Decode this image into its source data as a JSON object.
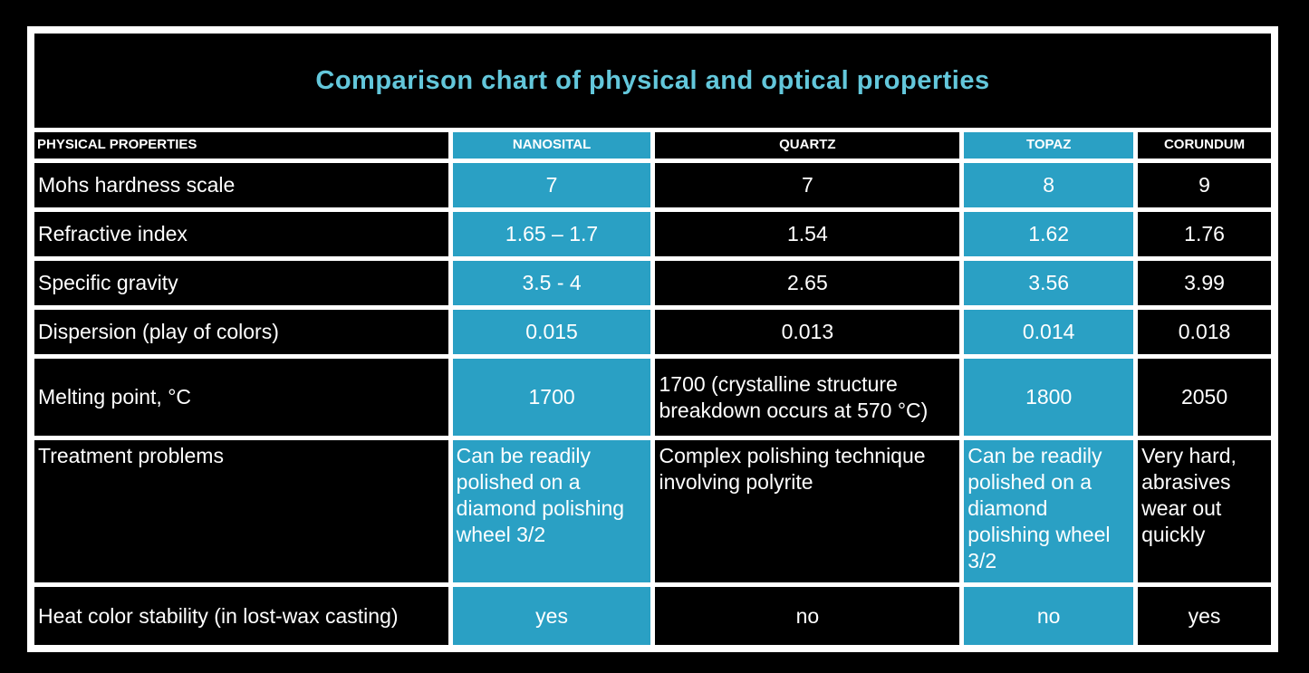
{
  "title": "Comparison chart of physical and optical properties",
  "colors": {
    "background": "#000000",
    "grid_lines": "#FFFFFF",
    "highlight_teal": "#2AA0C4",
    "title_cyan": "#63C7DB",
    "text": "#FFFFFF"
  },
  "chart_data": {
    "type": "table",
    "title": "Comparison chart of physical and optical properties",
    "columns": [
      "PHYSICAL PROPERTIES",
      "NANOSITAL",
      "QUARTZ",
      "TOPAZ",
      "CORUNDUM"
    ],
    "highlighted_columns": [
      "NANOSITAL",
      "TOPAZ"
    ],
    "rows": [
      {
        "property": "Mohs hardness scale",
        "values": [
          "7",
          "7",
          "8",
          "9"
        ]
      },
      {
        "property": "Refractive index",
        "values": [
          "1.65 – 1.7",
          "1.54",
          "1.62",
          "1.76"
        ]
      },
      {
        "property": "Specific gravity",
        "values": [
          "3.5 - 4",
          "2.65",
          "3.56",
          "3.99"
        ]
      },
      {
        "property": "Dispersion (play of colors)",
        "values": [
          "0.015",
          "0.013",
          "0.014",
          "0.018"
        ]
      },
      {
        "property": "Melting point, °C",
        "values": [
          "1700",
          "1700 (crystalline structure breakdown occurs at 570 °C)",
          "1800",
          "2050"
        ]
      },
      {
        "property": "Treatment problems",
        "values": [
          "Can be readily polished on a diamond polishing wheel 3/2",
          "Complex polishing technique involving polyrite",
          "Can be readily polished on a diamond polishing wheel 3/2",
          "Very hard, abrasives wear out quickly"
        ]
      },
      {
        "property": "Heat color stability (in lost-wax casting)",
        "values": [
          "yes",
          "no",
          "no",
          "yes"
        ]
      }
    ]
  }
}
